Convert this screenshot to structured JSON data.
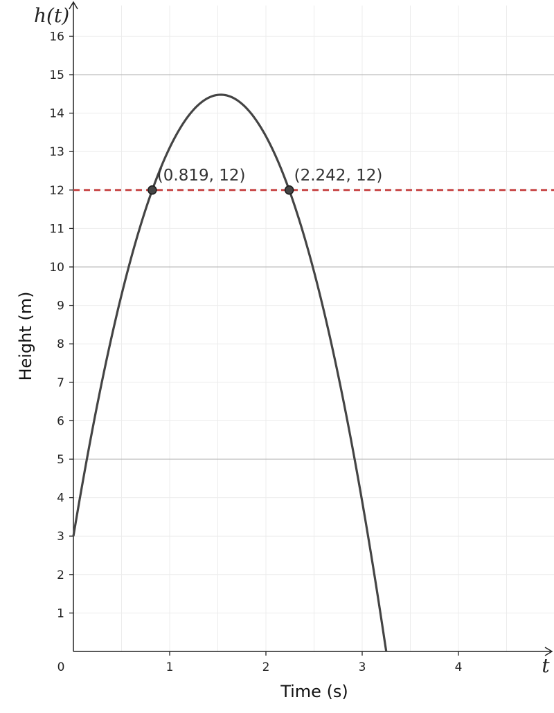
{
  "chart_data": {
    "type": "line",
    "xlabel": "Time (s)",
    "ylabel": "Height (m)",
    "x_axis_var": "t",
    "y_axis_var": "h(t)",
    "xlim": [
      0,
      5
    ],
    "ylim": [
      0,
      16.5
    ],
    "x_ticks": [
      {
        "value": 0,
        "label": "0"
      },
      {
        "value": 1,
        "label": "1"
      },
      {
        "value": 2,
        "label": "2"
      },
      {
        "value": 3,
        "label": "3"
      },
      {
        "value": 4,
        "label": "4"
      }
    ],
    "y_ticks": [
      {
        "value": 1,
        "label": "1"
      },
      {
        "value": 2,
        "label": "2"
      },
      {
        "value": 3,
        "label": "3"
      },
      {
        "value": 4,
        "label": "4"
      },
      {
        "value": 5,
        "label": "5"
      },
      {
        "value": 6,
        "label": "6"
      },
      {
        "value": 7,
        "label": "7"
      },
      {
        "value": 8,
        "label": "8"
      },
      {
        "value": 9,
        "label": "9"
      },
      {
        "value": 10,
        "label": "10"
      },
      {
        "value": 11,
        "label": "11"
      },
      {
        "value": 12,
        "label": "12"
      },
      {
        "value": 13,
        "label": "13"
      },
      {
        "value": 14,
        "label": "14"
      },
      {
        "value": 15,
        "label": "15"
      },
      {
        "value": 16,
        "label": "16"
      }
    ],
    "grid": true,
    "series": [
      {
        "color": "#444444",
        "function": {
          "a": -4.9,
          "b": 15.0,
          "c": 3.0
        },
        "x_range": [
          0,
          3.25
        ]
      }
    ],
    "reference_line": {
      "y": 12,
      "color": "#c94a4a",
      "style": "dashed"
    },
    "points": [
      {
        "x": 0.819,
        "y": 12,
        "label": "(0.819, 12)"
      },
      {
        "x": 2.242,
        "y": 12,
        "label": "(2.242, 12)"
      }
    ]
  }
}
